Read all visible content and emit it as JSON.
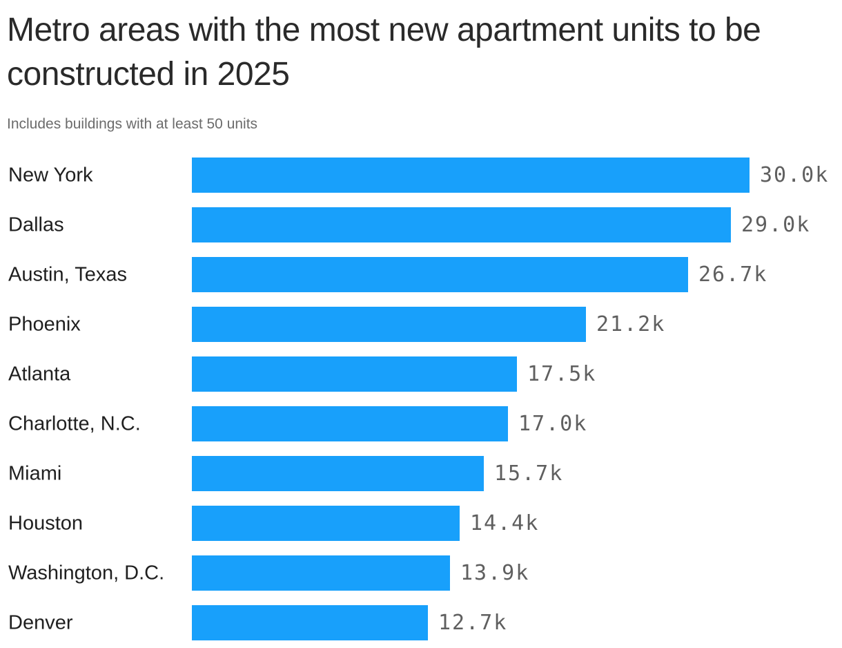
{
  "title": "Metro areas with the most new apartment units to be constructed in 2025",
  "subtitle": "Includes buildings with at least 50 units",
  "chart_data": {
    "type": "bar",
    "orientation": "horizontal",
    "categories": [
      "New York",
      "Dallas",
      "Austin, Texas",
      "Phoenix",
      "Atlanta",
      "Charlotte, N.C.",
      "Miami",
      "Houston",
      "Washington, D.C.",
      "Denver"
    ],
    "values": [
      30.0,
      29.0,
      26.7,
      21.2,
      17.5,
      17.0,
      15.7,
      14.4,
      13.9,
      12.7
    ],
    "value_labels": [
      "30.0k",
      "29.0k",
      "26.7k",
      "21.2k",
      "17.5k",
      "17.0k",
      "15.7k",
      "14.4k",
      "13.9k",
      "12.7k"
    ],
    "units": "thousands of units",
    "xlim": [
      0,
      30.0
    ],
    "grid": false,
    "legend": "none",
    "colors": {
      "bar": "#18a0fb",
      "category_label": "#1f1f1f",
      "value_label": "#5f5f5f",
      "title": "#2a2a2a",
      "subtitle": "#6b6b6b"
    }
  }
}
